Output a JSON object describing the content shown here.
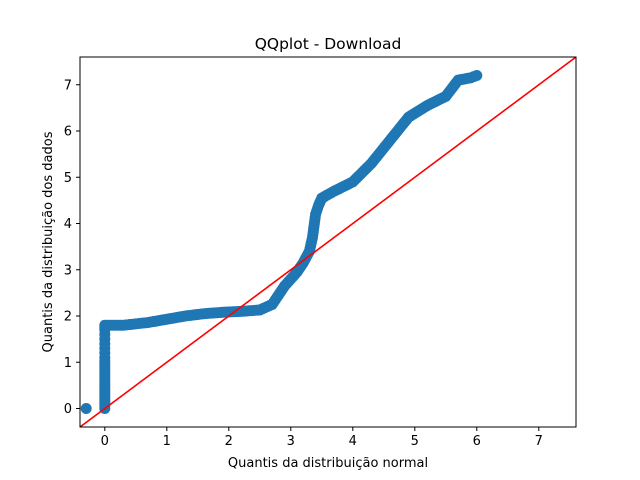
{
  "chart_data": {
    "type": "scatter",
    "title": "QQplot - Download",
    "xlabel": "Quantis da distribuição normal",
    "ylabel": "Quantis da distribuição dos dados",
    "xlim": [
      -0.4,
      7.6
    ],
    "ylim": [
      -0.4,
      7.6
    ],
    "x_ticks": [
      0,
      1,
      2,
      3,
      4,
      5,
      6,
      7
    ],
    "y_ticks": [
      0,
      1,
      2,
      3,
      4,
      5,
      6,
      7
    ],
    "grid": false,
    "colors": {
      "points": "#1f77b4",
      "reference_line": "#ff0000"
    },
    "reference_line": {
      "points": [
        [
          -0.4,
          -0.4
        ],
        [
          7.6,
          7.6
        ]
      ]
    },
    "x": [
      -0.3,
      0,
      0,
      0,
      0,
      0,
      0,
      0,
      0,
      0,
      0,
      0,
      0,
      0.3,
      0.5,
      0.7,
      1.0,
      1.3,
      1.6,
      1.9,
      2.2,
      2.5,
      2.7,
      2.8,
      2.9,
      3.0,
      3.1,
      3.2,
      3.3,
      3.35,
      3.38,
      3.4,
      3.45,
      3.5,
      3.7,
      4.0,
      4.3,
      4.6,
      4.9,
      5.2,
      5.5,
      5.7,
      5.9,
      6.0
    ],
    "y": [
      0,
      0,
      0.6,
      0.9,
      1.1,
      1.2,
      1.3,
      1.4,
      1.5,
      1.6,
      1.7,
      1.75,
      1.8,
      1.8,
      1.83,
      1.86,
      1.93,
      2.0,
      2.05,
      2.08,
      2.1,
      2.13,
      2.25,
      2.45,
      2.65,
      2.8,
      2.95,
      3.15,
      3.4,
      3.7,
      4.0,
      4.2,
      4.4,
      4.55,
      4.7,
      4.9,
      5.3,
      5.8,
      6.3,
      6.55,
      6.75,
      7.1,
      7.15,
      7.2
    ]
  }
}
